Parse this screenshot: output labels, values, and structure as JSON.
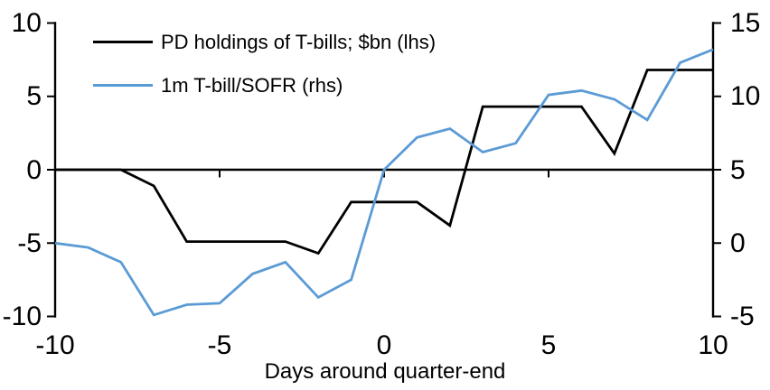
{
  "chart_data": {
    "type": "line",
    "x": [
      -10,
      -9,
      -8,
      -7,
      -6,
      -5,
      -4,
      -3,
      -2,
      -1,
      0,
      1,
      2,
      3,
      4,
      5,
      6,
      7,
      8,
      9,
      10
    ],
    "series": [
      {
        "name": "PD holdings of T-bills; $bn (lhs)",
        "axis": "left",
        "color": "#000000",
        "values": [
          0,
          0,
          0,
          -1.1,
          -4.9,
          -4.9,
          -4.9,
          -4.9,
          -5.7,
          -2.2,
          -2.2,
          -2.2,
          -3.8,
          4.3,
          4.3,
          4.3,
          4.3,
          1.1,
          6.8,
          6.8,
          6.8
        ]
      },
      {
        "name": "1m T-bill/SOFR (rhs)",
        "axis": "right",
        "color": "#5B9BD5",
        "values": [
          0.0,
          -0.3,
          -1.3,
          -4.9,
          -4.2,
          -4.1,
          -2.1,
          -1.3,
          -3.7,
          -2.5,
          5.0,
          7.2,
          7.8,
          6.2,
          6.8,
          10.1,
          10.4,
          9.8,
          8.4,
          12.3,
          13.2
        ]
      }
    ],
    "title": "",
    "xlabel": "Days around quarter-end",
    "xlim": [
      -10,
      10
    ],
    "left_axis": {
      "min": -10,
      "max": 10,
      "tick_labels": [
        "10",
        "5",
        "0",
        "-5",
        "-10"
      ]
    },
    "right_axis": {
      "min": -5,
      "max": 15,
      "tick_labels": [
        "15",
        "10",
        "5",
        "0",
        "-5"
      ]
    },
    "x_tick_labels": [
      "-10",
      "-5",
      "0",
      "5",
      "10"
    ],
    "grid": false,
    "legend_position": "top-left",
    "zero_line": true
  }
}
